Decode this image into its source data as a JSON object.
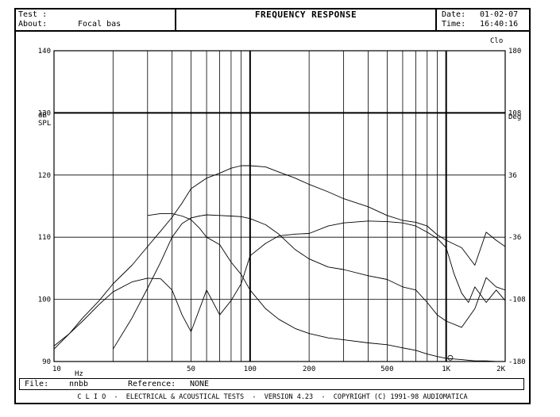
{
  "header": {
    "test_label": "Test :",
    "about_label": "About:",
    "about_value": "Focal bas",
    "title": "FREQUENCY RESPONSE",
    "date_label": "Date:",
    "date_value": "01-02-07",
    "time_label": "Time:",
    "time_value": "16:40:16"
  },
  "footer": {
    "file_label": "File:",
    "file_value": "nnbb",
    "reference_label": "Reference:",
    "reference_value": "NONE",
    "banner": "C L I O  -  ELECTRICAL & ACOUSTICAL TESTS  -  VERSION 4.23  -  COPYRIGHT (C) 1991-98 AUDIOMATICA"
  },
  "chart_data": {
    "type": "line",
    "title": "FREQUENCY RESPONSE",
    "xlabel": "Hz",
    "ylabel": "dB SPL",
    "y2label": "Deg",
    "scale_mark": "Clo",
    "x_scale": "log",
    "xlim": [
      10,
      2000
    ],
    "ylim": [
      90,
      140
    ],
    "y2lim": [
      -180,
      180
    ],
    "x_ticks": [
      "10",
      "50",
      "100",
      "200",
      "500",
      "1K",
      "2K"
    ],
    "x_tick_values": [
      10,
      50,
      100,
      200,
      500,
      1000,
      2000
    ],
    "y_ticks": [
      "90",
      "100",
      "110",
      "120",
      "130",
      "140"
    ],
    "y2_ticks": [
      "-180",
      "-108",
      "-36",
      "36",
      "108",
      "180"
    ],
    "grid": true,
    "series": [
      {
        "x": [
          10,
          12,
          14,
          17,
          20,
          25,
          30,
          35,
          40,
          45,
          50,
          60,
          70,
          80,
          90,
          100,
          120,
          140,
          170,
          200,
          250,
          300,
          400,
          500,
          600,
          700,
          800,
          900,
          1000,
          1200,
          1400,
          1600,
          1800,
          2000
        ],
        "y": [
          92,
          94.5,
          97,
          99.8,
          102.5,
          105.5,
          108.5,
          111,
          113.2,
          115.5,
          117.8,
          119.5,
          120.3,
          121.1,
          121.5,
          121.5,
          121.3,
          120.5,
          119.5,
          118.5,
          117.3,
          116.2,
          114.9,
          113.5,
          112.7,
          112.4,
          111.8,
          110.4,
          109.5,
          108.3,
          105.5,
          110.8,
          109.5,
          108.5
        ]
      },
      {
        "x": [
          10,
          12,
          14,
          17,
          20,
          25,
          30,
          35,
          40,
          45,
          50,
          60,
          70,
          80,
          90,
          100,
          120,
          140,
          170,
          200,
          250,
          300,
          400,
          500,
          600,
          700,
          800,
          900,
          1000,
          1100,
          1200,
          1300,
          1400,
          1600,
          1800,
          2000
        ],
        "y": [
          92.5,
          94.5,
          96.5,
          99.2,
          101.2,
          102.8,
          103.4,
          103.3,
          101.5,
          97.5,
          94.8,
          101.5,
          97.5,
          99.8,
          102.5,
          107,
          109,
          110.2,
          110.5,
          110.6,
          111.8,
          112.3,
          112.6,
          112.5,
          112.3,
          111.8,
          110.8,
          109.8,
          108.3,
          104,
          101,
          99.5,
          102,
          99.5,
          101.5,
          99.8
        ]
      },
      {
        "x": [
          20,
          25,
          30,
          35,
          40,
          45,
          50,
          55,
          60,
          70,
          80,
          90,
          100,
          120,
          140,
          170,
          200,
          250,
          300,
          400,
          500,
          600,
          700,
          800,
          900,
          1000,
          1200,
          1400,
          1600,
          1800,
          2000
        ],
        "y": [
          92,
          97,
          101.8,
          106,
          110,
          112.2,
          113.1,
          113.4,
          113.6,
          113.5,
          113.4,
          113.3,
          113,
          112,
          110.5,
          108,
          106.5,
          105.2,
          104.8,
          103.8,
          103.2,
          102,
          101.5,
          99.5,
          97.5,
          96.5,
          95.5,
          98.5,
          103.5,
          102,
          101.5
        ]
      },
      {
        "x": [
          30,
          35,
          40,
          45,
          50,
          55,
          60,
          70,
          80,
          90,
          100,
          120,
          140,
          170,
          200,
          250,
          300,
          400,
          500,
          600,
          700,
          800,
          900,
          1000,
          1200,
          1400,
          1600,
          1800,
          2000
        ],
        "y": [
          113.5,
          113.8,
          113.8,
          113.4,
          112.8,
          111.5,
          110,
          108.8,
          106,
          104,
          101.5,
          98.5,
          96.8,
          95.3,
          94.5,
          93.8,
          93.5,
          93,
          92.7,
          92.2,
          91.8,
          91.2,
          90.8,
          90.5,
          90.3,
          90.1,
          90.1,
          90,
          90
        ]
      }
    ]
  }
}
